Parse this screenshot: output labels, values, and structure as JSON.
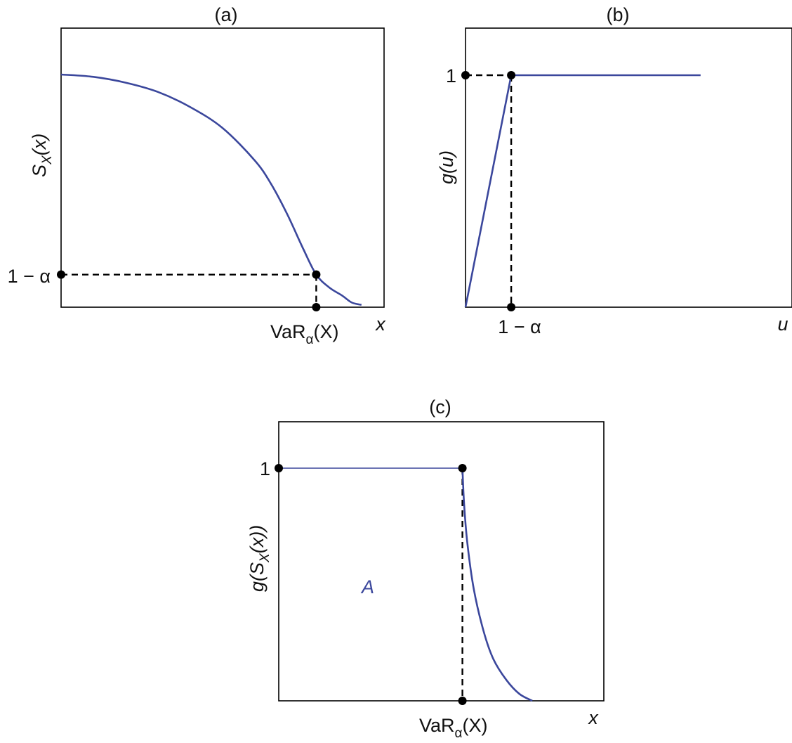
{
  "chart_data": [
    {
      "panel": "a",
      "type": "line",
      "title": "(a)",
      "xlabel": "x",
      "ylabel_main": "S",
      "ylabel_sub": "X",
      "ylabel_tail": "(x)",
      "x_tick_main": "VaR",
      "x_tick_sub": "α",
      "x_tick_tail": "(X)",
      "y_tick": "1 − α",
      "xlim": [
        0,
        1
      ],
      "ylim": [
        0,
        1
      ],
      "series": [
        {
          "style": "solid-blue",
          "x": [
            0,
            0.1,
            0.2,
            0.3,
            0.4,
            0.5,
            0.6,
            0.65,
            0.7,
            0.75,
            0.79,
            0.83,
            0.87,
            0.9,
            0.93
          ],
          "y": [
            1.0,
            0.99,
            0.965,
            0.925,
            0.86,
            0.77,
            0.63,
            0.53,
            0.4,
            0.25,
            0.14,
            0.085,
            0.05,
            0.02,
            0.01
          ]
        }
      ],
      "guides": [
        {
          "style": "dashed",
          "points": [
            [
              0,
              0.14
            ],
            [
              0.79,
              0.14
            ]
          ]
        },
        {
          "style": "dashed",
          "points": [
            [
              0.79,
              0.14
            ],
            [
              0.79,
              0
            ]
          ]
        }
      ],
      "markers": [
        [
          0,
          0.14
        ],
        [
          0.79,
          0.14
        ],
        [
          0.79,
          0
        ]
      ]
    },
    {
      "panel": "b",
      "type": "line",
      "title": "(b)",
      "xlabel": "u",
      "ylabel_main": "g(u)",
      "x_tick": "1 − α",
      "y_tick": "1",
      "xlim": [
        0,
        1
      ],
      "ylim": [
        0,
        1.2
      ],
      "series": [
        {
          "style": "solid-blue",
          "x": [
            0,
            0.14,
            0.72
          ],
          "y": [
            0,
            1,
            1
          ]
        }
      ],
      "guides": [
        {
          "style": "dashed",
          "points": [
            [
              0,
              1
            ],
            [
              0.14,
              1
            ]
          ]
        },
        {
          "style": "dashed",
          "points": [
            [
              0.14,
              1
            ],
            [
              0.14,
              0
            ]
          ]
        }
      ],
      "markers": [
        [
          0,
          1
        ],
        [
          0.14,
          1
        ],
        [
          0.14,
          0
        ]
      ]
    },
    {
      "panel": "c",
      "type": "line",
      "title": "(c)",
      "xlabel": "x",
      "ylabel_main": "g(S",
      "ylabel_sub": "X",
      "ylabel_tail": "(x))",
      "x_tick_main": "VaR",
      "x_tick_sub": "α",
      "x_tick_tail": "(X)",
      "y_tick": "1",
      "annotation": "A",
      "xlim": [
        0,
        1
      ],
      "ylim": [
        0,
        1.2
      ],
      "series": [
        {
          "style": "thin-blue",
          "x": [
            0,
            0.565
          ],
          "y": [
            1,
            1
          ]
        },
        {
          "style": "solid-blue",
          "x": [
            0.565,
            0.57,
            0.58,
            0.6,
            0.63,
            0.66,
            0.7,
            0.74,
            0.78
          ],
          "y": [
            1.0,
            0.85,
            0.68,
            0.48,
            0.3,
            0.18,
            0.09,
            0.03,
            0.0
          ]
        }
      ],
      "guides": [
        {
          "style": "dashed",
          "points": [
            [
              0.565,
              1
            ],
            [
              0.565,
              0
            ]
          ]
        }
      ],
      "markers": [
        [
          0,
          1
        ],
        [
          0.565,
          1
        ],
        [
          0.565,
          0
        ]
      ]
    }
  ]
}
